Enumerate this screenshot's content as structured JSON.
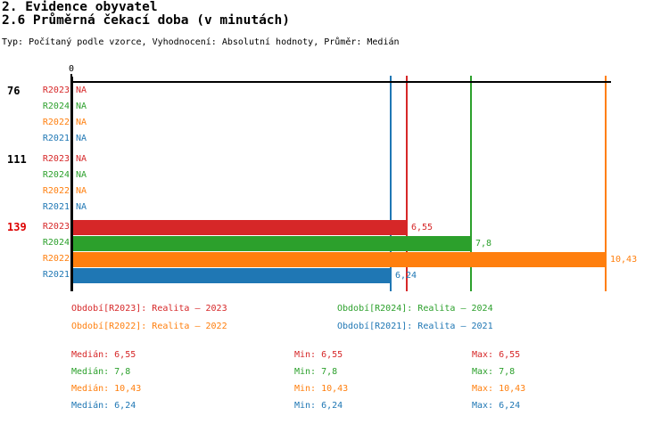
{
  "title": "2. Evidence obyvatel",
  "subtitle": "2.6 Průměrná čekací doba (v minutách)",
  "meta": "Typ: Počítaný podle vzorce, Vyhodnocení: Absolutní hodnoty, Průměr: Medián",
  "colors": {
    "red": "#d62728",
    "green": "#2ca02c",
    "orange": "#ff7f0e",
    "blue": "#1f77b4",
    "highlighted_group": "#dd0000",
    "axis": "#000000"
  },
  "chart_data": {
    "type": "bar",
    "orientation": "horizontal",
    "title": "2.6 Průměrná čekací doba (v minutách)",
    "axis_origin_label": "0",
    "x_min": 0,
    "x_max_visible": 10.54,
    "groups": [
      {
        "label": "76",
        "highlighted": false,
        "rows": [
          {
            "series": "R2023",
            "color": "red",
            "value": null,
            "label": "NA"
          },
          {
            "series": "R2024",
            "color": "green",
            "value": null,
            "label": "NA"
          },
          {
            "series": "R2022",
            "color": "orange",
            "value": null,
            "label": "NA"
          },
          {
            "series": "R2021",
            "color": "blue",
            "value": null,
            "label": "NA"
          }
        ]
      },
      {
        "label": "111",
        "highlighted": false,
        "rows": [
          {
            "series": "R2023",
            "color": "red",
            "value": null,
            "label": "NA"
          },
          {
            "series": "R2024",
            "color": "green",
            "value": null,
            "label": "NA"
          },
          {
            "series": "R2022",
            "color": "orange",
            "value": null,
            "label": "NA"
          },
          {
            "series": "R2021",
            "color": "blue",
            "value": null,
            "label": "NA"
          }
        ]
      },
      {
        "label": "139",
        "highlighted": true,
        "rows": [
          {
            "series": "R2023",
            "color": "red",
            "value": 6.55,
            "label": "6,55"
          },
          {
            "series": "R2024",
            "color": "green",
            "value": 7.8,
            "label": "7,8"
          },
          {
            "series": "R2022",
            "color": "orange",
            "value": 10.43,
            "label": "10,43"
          },
          {
            "series": "R2021",
            "color": "blue",
            "value": 6.24,
            "label": "6,24"
          }
        ]
      }
    ],
    "reference_lines": [
      {
        "series": "R2021",
        "color": "blue",
        "value": 6.24
      },
      {
        "series": "R2023",
        "color": "red",
        "value": 6.55
      },
      {
        "series": "R2024",
        "color": "green",
        "value": 7.8
      },
      {
        "series": "R2022",
        "color": "orange",
        "value": 10.43
      }
    ]
  },
  "legend": {
    "items": [
      {
        "text": "Období[R2023]: Realita – 2023",
        "color": "red"
      },
      {
        "text": "Období[R2024]: Realita – 2024",
        "color": "green"
      },
      {
        "text": "Období[R2022]: Realita – 2022",
        "color": "orange"
      },
      {
        "text": "Období[R2021]: Realita – 2021",
        "color": "blue"
      }
    ]
  },
  "stats": {
    "rows": [
      {
        "color": "red",
        "median": "Medián: 6,55",
        "min": "Min: 6,55",
        "max": "Max: 6,55"
      },
      {
        "color": "green",
        "median": "Medián: 7,8",
        "min": "Min: 7,8",
        "max": "Max: 7,8"
      },
      {
        "color": "orange",
        "median": "Medián: 10,43",
        "min": "Min: 10,43",
        "max": "Max: 10,43"
      },
      {
        "color": "blue",
        "median": "Medián: 6,24",
        "min": "Min: 6,24",
        "max": "Max: 6,24"
      }
    ]
  }
}
